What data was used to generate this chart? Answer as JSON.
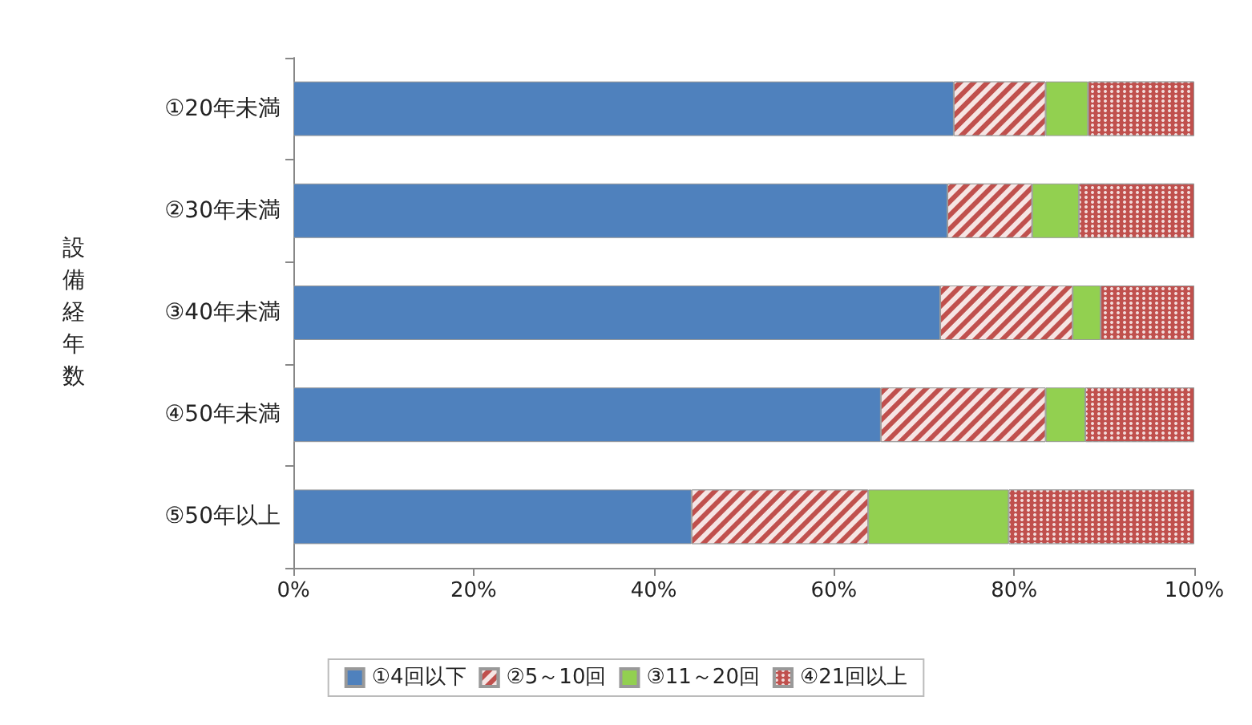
{
  "chart_data": {
    "type": "bar",
    "orientation": "horizontal",
    "stacked": true,
    "ylabel": "設備経年数",
    "categories": [
      "①20年未満",
      "②30年未満",
      "③40年未満",
      "④50年未満",
      "⑤50年以上"
    ],
    "series": [
      {
        "name": "①4回以下",
        "color": "#4f81bd",
        "values": [
          73.3,
          72.6,
          71.8,
          65.2,
          44.2
        ]
      },
      {
        "name": "②5～10回",
        "color": "#c0504d",
        "values": [
          10.2,
          9.4,
          14.7,
          18.3,
          19.6
        ]
      },
      {
        "name": "③11～20回",
        "color": "#92d050",
        "values": [
          4.7,
          5.2,
          3.1,
          4.4,
          15.6
        ]
      },
      {
        "name": "④21回以上",
        "color": "#c0504d",
        "values": [
          11.8,
          12.8,
          10.4,
          12.1,
          20.6
        ]
      }
    ],
    "xlim": [
      0,
      100
    ],
    "xticks": [
      {
        "value": 0,
        "label": "0%"
      },
      {
        "value": 20,
        "label": "20%"
      },
      {
        "value": 40,
        "label": "40%"
      },
      {
        "value": 60,
        "label": "60%"
      },
      {
        "value": 80,
        "label": "80%"
      },
      {
        "value": 100,
        "label": "100%"
      }
    ],
    "grid": false,
    "legend": "bottom"
  }
}
